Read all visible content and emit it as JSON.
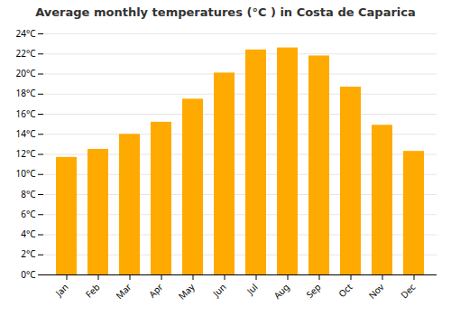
{
  "chart_data": {
    "type": "bar",
    "title": "Average monthly temperatures (°C ) in Costa de Caparica",
    "categories": [
      "Jan",
      "Feb",
      "Mar",
      "Apr",
      "May",
      "Jun",
      "Jul",
      "Aug",
      "Sep",
      "Oct",
      "Nov",
      "Dec"
    ],
    "values": [
      11.7,
      12.5,
      14.0,
      15.2,
      17.5,
      20.1,
      22.4,
      22.6,
      21.8,
      18.7,
      14.9,
      12.3
    ],
    "color": "#FFAA00",
    "ylim": [
      0,
      24
    ],
    "yticks": [
      {
        "value": 0,
        "label": "0°C"
      },
      {
        "value": 2,
        "label": "2°C"
      },
      {
        "value": 4,
        "label": "4°C"
      },
      {
        "value": 6,
        "label": "6°C"
      },
      {
        "value": 8,
        "label": "8°C"
      },
      {
        "value": 10,
        "label": "10°C"
      },
      {
        "value": 12,
        "label": "12°C"
      },
      {
        "value": 14,
        "label": "14°C"
      },
      {
        "value": 16,
        "label": "16°C"
      },
      {
        "value": 18,
        "label": "18°C"
      },
      {
        "value": 20,
        "label": "20°C"
      },
      {
        "value": 22,
        "label": "22°C"
      },
      {
        "value": 24,
        "label": "24°C"
      }
    ],
    "grid": true
  }
}
